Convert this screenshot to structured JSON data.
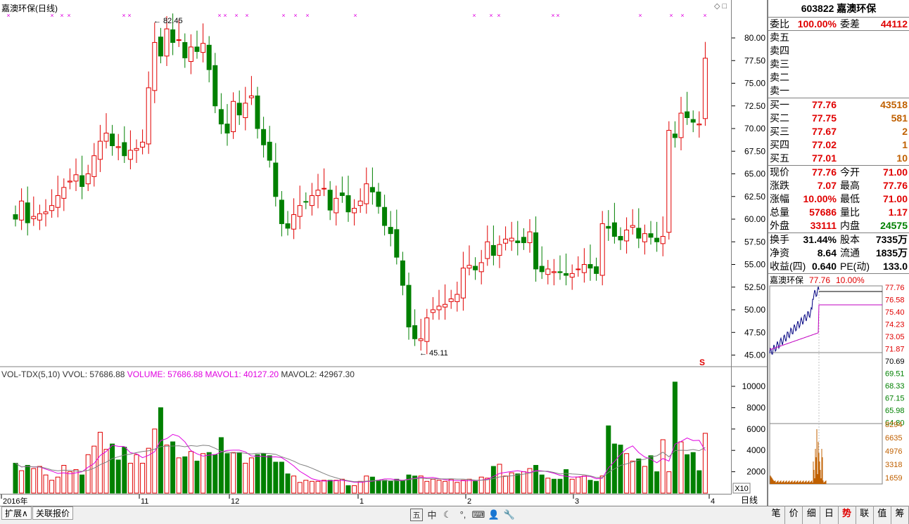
{
  "title": "嘉澳环保(日线)",
  "corner_icons": [
    "diamond-icon",
    "window-icon"
  ],
  "price_axis": {
    "ticks": [
      "80.00",
      "77.50",
      "75.00",
      "72.50",
      "70.00",
      "67.50",
      "65.00",
      "62.50",
      "60.00",
      "57.50",
      "55.00",
      "52.50",
      "50.00",
      "47.50",
      "45.00"
    ]
  },
  "annotations": {
    "high": "82.45",
    "low": "45.11",
    "s_marker": "S"
  },
  "volume_legend": {
    "name": "VOL-TDX(5,10)",
    "vvol": "VVOL: 57686.88",
    "volume": "VOLUME: 57686.88",
    "mavol1": "MAVOL1: 40127.20",
    "mavol2": "MAVOL2: 42967.30"
  },
  "volume_axis": {
    "ticks": [
      "10000",
      "8000",
      "6000",
      "4000",
      "2000"
    ],
    "unit": "X10"
  },
  "date_axis": {
    "labels": [
      "2016年",
      "11",
      "12",
      "1",
      "2",
      "3",
      "4"
    ]
  },
  "period": "日线",
  "bottom_tabs": [
    "扩展∧",
    "关联报价"
  ],
  "toolbar_icons": [
    "layout-icon",
    "chinese-input-icon",
    "moon-icon",
    "dots-icon",
    "keyboard-icon",
    "user-icon",
    "wrench-icon"
  ],
  "toolbar_labels": {
    "layout": "五",
    "cn": "中"
  },
  "quote": {
    "header": "603822 嘉澳环保",
    "weibi_label": "委比",
    "weibi": "100.00%",
    "weicha_label": "委差",
    "weicha": "44112",
    "sell": [
      {
        "label": "卖五"
      },
      {
        "label": "卖四"
      },
      {
        "label": "卖三"
      },
      {
        "label": "卖二"
      },
      {
        "label": "卖一"
      }
    ],
    "buy": [
      {
        "label": "买一",
        "price": "77.76",
        "vol": "43518"
      },
      {
        "label": "买二",
        "price": "77.75",
        "vol": "581"
      },
      {
        "label": "买三",
        "price": "77.67",
        "vol": "2"
      },
      {
        "label": "买四",
        "price": "77.02",
        "vol": "1"
      },
      {
        "label": "买五",
        "price": "77.01",
        "vol": "10"
      }
    ],
    "stats1": [
      {
        "l1": "现价",
        "v1": "77.76",
        "l2": "今开",
        "v2": "71.00",
        "c1": "red",
        "c2": "red"
      },
      {
        "l1": "涨跌",
        "v1": "7.07",
        "l2": "最高",
        "v2": "77.76",
        "c1": "red",
        "c2": "red"
      },
      {
        "l1": "涨幅",
        "v1": "10.00%",
        "l2": "最低",
        "v2": "71.00",
        "c1": "red",
        "c2": "red"
      },
      {
        "l1": "总量",
        "v1": "57686",
        "l2": "量比",
        "v2": "1.17",
        "c1": "red",
        "c2": "red"
      },
      {
        "l1": "外盘",
        "v1": "33111",
        "l2": "内盘",
        "v2": "24575",
        "c1": "red",
        "c2": "green"
      }
    ],
    "stats2": [
      {
        "l1": "换手",
        "v1": "31.44%",
        "l2": "股本",
        "v2": "7335万"
      },
      {
        "l1": "净资",
        "v1": "8.64",
        "l2": "流通",
        "v2": "1835万"
      },
      {
        "l1": "收益(四)",
        "v1": "0.640",
        "l2": "PE(动)",
        "v2": "133.0"
      }
    ]
  },
  "mini_chart": {
    "name": "嘉澳环保",
    "price": "77.76",
    "pct": "10.00%",
    "price_ticks": [
      "77.76",
      "76.58",
      "75.40",
      "74.23",
      "73.05",
      "71.87",
      "70.69",
      "69.51",
      "68.33",
      "67.15",
      "65.98",
      "64.80"
    ],
    "vol_ticks": [
      "8294",
      "6635",
      "4976",
      "3318",
      "1659"
    ]
  },
  "side_tabs": [
    "笔",
    "价",
    "细",
    "日",
    "势",
    "联",
    "值",
    "筹"
  ],
  "side_tab_active": 4,
  "colors": {
    "up": "#e00000",
    "down": "#008000",
    "ma1": "#e000e0",
    "ma2": "#808080",
    "grid": "#c0c0c0",
    "avgline": "#c000c0",
    "pricebeta": "#000080"
  }
}
